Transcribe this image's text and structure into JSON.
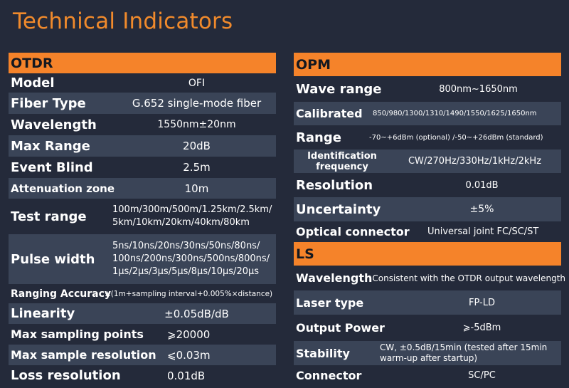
{
  "title": "Technical Indicators",
  "otdr": {
    "header": "OTDR",
    "rows": [
      {
        "label": "Model",
        "value": "OFI"
      },
      {
        "label": "Fiber Type",
        "value": "G.652 single-mode fiber"
      },
      {
        "label": "Wavelength",
        "value": "1550nm±20nm"
      },
      {
        "label": "Max Range",
        "value": "20dB"
      },
      {
        "label": "Event Blind",
        "value": "2.5m"
      },
      {
        "label": "Attenuation zone",
        "value": "10m"
      },
      {
        "label": "Test range",
        "value": "100m/300m/500m/1.25km/2.5km/ 5km/10km/20km/40km/80km"
      },
      {
        "label": "Pulse width",
        "value": "5ns/10ns/20ns/30ns/50ns/80ns/ 100ns/200ns/300ns/500ns/800ns/ 1μs/2μs/3μs/5μs/8μs/10μs/20μs"
      },
      {
        "label": "Ranging Accuracy",
        "value": "±(1m+sampling interval+0.005%×distance)"
      },
      {
        "label": "Linearity",
        "value": "±0.05dB/dB"
      },
      {
        "label": "Max sampling points",
        "value": "⩾20000"
      },
      {
        "label": "Max sample resolution",
        "value": "⩽0.03m"
      },
      {
        "label": "Loss resolution",
        "value": "0.01dB"
      }
    ]
  },
  "opm": {
    "header": "OPM",
    "rows": [
      {
        "label": "Wave range",
        "value": "800nm~1650nm"
      },
      {
        "label": "Calibrated",
        "value": "850/980/1300/1310/1490/1550/1625/1650nm"
      },
      {
        "label": "Range",
        "value": "-70~+6dBm (optional) /-50~+26dBm (standard)"
      },
      {
        "label": "Identification frequency",
        "value": "CW/270Hz/330Hz/1kHz/2kHz"
      },
      {
        "label": "Resolution",
        "value": "0.01dB"
      },
      {
        "label": "Uncertainty",
        "value": "±5%"
      },
      {
        "label": "Optical connector",
        "value": "Universal joint FC/SC/ST"
      }
    ]
  },
  "ls": {
    "header": "LS",
    "rows": [
      {
        "label": "Wavelength",
        "value": "Consistent with the OTDR output wavelength"
      },
      {
        "label": "Laser type",
        "value": "FP-LD"
      },
      {
        "label": "Output Power",
        "value": "⩾-5dBm"
      },
      {
        "label": "Stability",
        "value": "CW, ±0.5dB/15min (tested after 15min warm-up after startup)"
      },
      {
        "label": "Connector",
        "value": "SC/PC"
      }
    ]
  }
}
